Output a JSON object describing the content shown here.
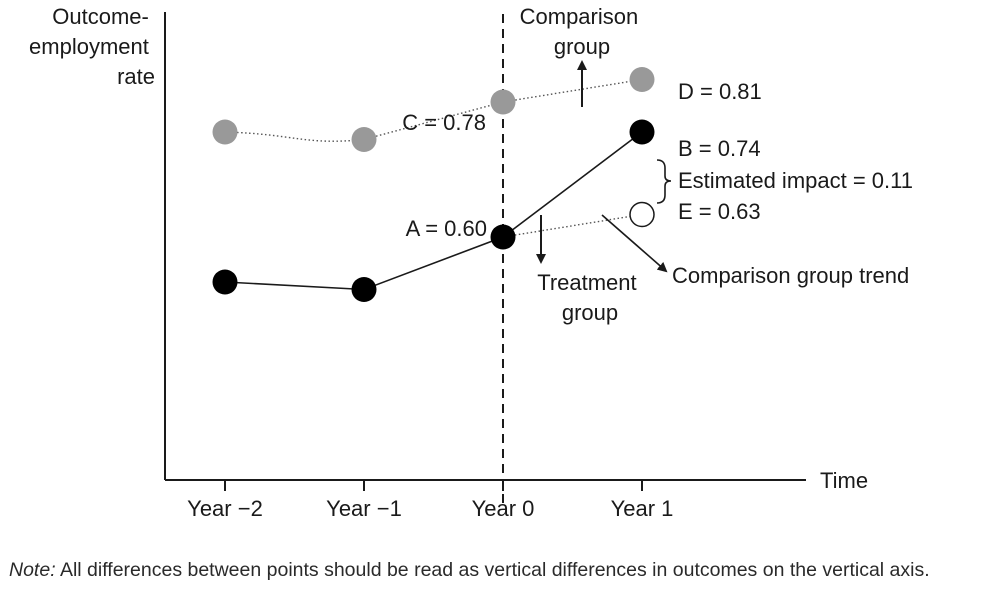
{
  "chart_data": {
    "type": "line",
    "ylabel": [
      "Outcome-",
      "employment",
      "rate"
    ],
    "xlabel": "Time",
    "categories": [
      "Year −2",
      "Year −1",
      "Year 0",
      "Year 1"
    ],
    "series": [
      {
        "name": "Comparison group",
        "values": [
          0.74,
          0.73,
          0.78,
          0.81
        ],
        "color": "#999999"
      },
      {
        "name": "Treatment group",
        "values": [
          0.54,
          0.53,
          0.6,
          0.74
        ],
        "color": "#000000"
      }
    ],
    "counterfactual": {
      "from_x": 2,
      "from_y": 0.6,
      "to_x": 3,
      "to_y": 0.63,
      "color": "#ffffff"
    },
    "point_labels": {
      "A": "A = 0.60",
      "B": "B = 0.74",
      "C": "C = 0.78",
      "D": "D = 0.81",
      "E": "E = 0.63"
    },
    "annotations": {
      "comparison_group": [
        "Comparison",
        "group"
      ],
      "treatment_group": [
        "Treatment",
        "group"
      ],
      "estimated_impact": "Estimated impact = 0.11",
      "comparison_trend": "Comparison group trend"
    },
    "ylim": [
      0.2,
      0.9
    ],
    "grid": false,
    "legend": "none"
  },
  "note": {
    "label": "Note:",
    "text": " All differences between points should be read as vertical differences in outcomes on the vertical axis."
  }
}
